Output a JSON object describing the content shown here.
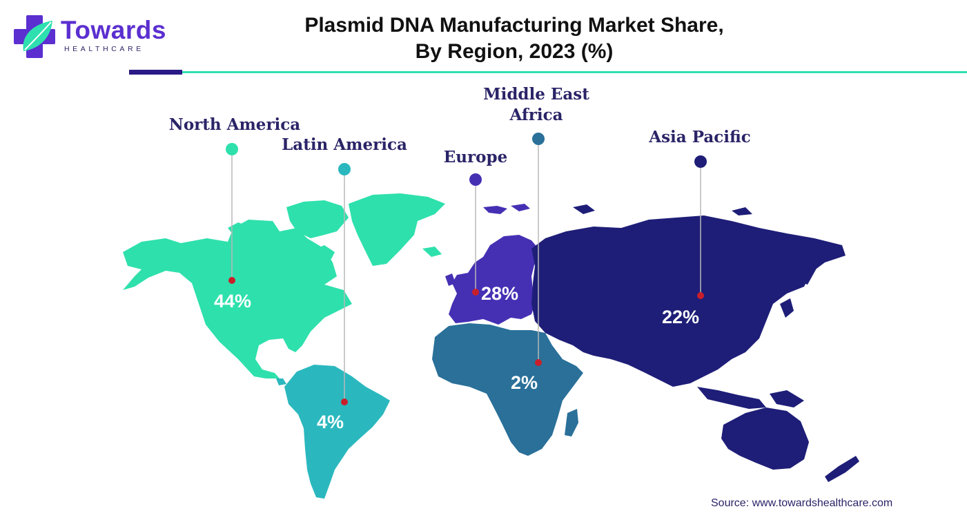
{
  "header": {
    "title_line_1": "Plasmid DNA Manufacturing Market Share,",
    "title_line_2": "By Region, 2023 (%)"
  },
  "brand": {
    "name": "Towards",
    "tagline": "HEALTHCARE",
    "logo_icon": "plus-leaf-icon",
    "colors": {
      "purple": "#5b2fd0",
      "teal": "#2ee0b0",
      "dark": "#2a1a86",
      "rule": "#2ee0b0"
    }
  },
  "regions": [
    {
      "key": "north-america",
      "label_lines": [
        "North America"
      ],
      "value": 44,
      "value_text": "44%",
      "color": "#2ee0ac",
      "label_color": "#2a2467"
    },
    {
      "key": "latin-america",
      "label_lines": [
        "Latin America"
      ],
      "value": 4,
      "value_text": "4%",
      "color": "#2ab8be",
      "label_color": "#2a2467"
    },
    {
      "key": "europe",
      "label_lines": [
        "Europe"
      ],
      "value": 28,
      "value_text": "28%",
      "color": "#4530b4",
      "label_color": "#2a2467"
    },
    {
      "key": "middle-east-africa",
      "label_lines": [
        "Middle East",
        "Africa"
      ],
      "value": 2,
      "value_text": "2%",
      "color": "#2a7099",
      "label_color": "#2a2467"
    },
    {
      "key": "asia-pacific",
      "label_lines": [
        "Asia Pacific"
      ],
      "value": 22,
      "value_text": "22%",
      "color": "#1e1e78",
      "label_color": "#2a2467"
    }
  ],
  "legend_marker_color": "#c91f2a",
  "source": "Source: www.towardshealthcare.com"
}
